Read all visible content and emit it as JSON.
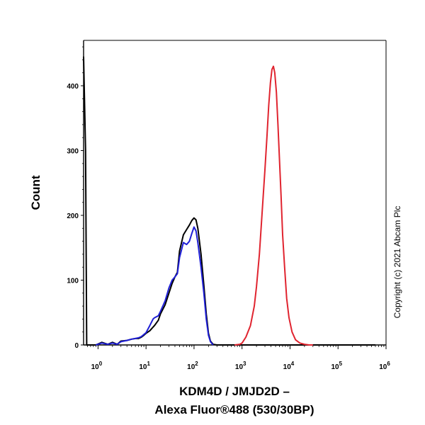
{
  "chart_data": {
    "type": "line",
    "title": "",
    "xlabel_line1": "KDM4D / JMJD2D –",
    "xlabel_line2": "Alexa Fluor®488 (530/30BP)",
    "ylabel": "Count",
    "x_scale": "log",
    "xlim": [
      0.5,
      1000000
    ],
    "ylim": [
      0,
      470
    ],
    "x_ticks": [
      {
        "base": "10",
        "exp": "0",
        "value": 1
      },
      {
        "base": "10",
        "exp": "1",
        "value": 10
      },
      {
        "base": "10",
        "exp": "2",
        "value": 100
      },
      {
        "base": "10",
        "exp": "3",
        "value": 1000
      },
      {
        "base": "10",
        "exp": "4",
        "value": 10000
      },
      {
        "base": "10",
        "exp": "5",
        "value": 100000
      },
      {
        "base": "10",
        "exp": "6",
        "value": 1000000
      }
    ],
    "y_ticks": [
      "0",
      "100",
      "200",
      "300",
      "400"
    ],
    "grid": false,
    "legend": "none",
    "annotation": "Copyright (c) 2021 Abcam Plc",
    "series": [
      {
        "color": "#000000",
        "points": [
          [
            0.5,
            445
          ],
          [
            0.55,
            300
          ],
          [
            0.58,
            0
          ],
          [
            0.9,
            0
          ],
          [
            1.2,
            4
          ],
          [
            1.6,
            1
          ],
          [
            2,
            4
          ],
          [
            2.5,
            1
          ],
          [
            3,
            6
          ],
          [
            4,
            7
          ],
          [
            5,
            9
          ],
          [
            6,
            10
          ],
          [
            7,
            10
          ],
          [
            8,
            12
          ],
          [
            9,
            15
          ],
          [
            10,
            18
          ],
          [
            12,
            22
          ],
          [
            15,
            30
          ],
          [
            18,
            38
          ],
          [
            20,
            48
          ],
          [
            25,
            62
          ],
          [
            30,
            80
          ],
          [
            35,
            95
          ],
          [
            40,
            105
          ],
          [
            45,
            112
          ],
          [
            50,
            145
          ],
          [
            60,
            170
          ],
          [
            70,
            178
          ],
          [
            80,
            185
          ],
          [
            90,
            192
          ],
          [
            100,
            196
          ],
          [
            110,
            193
          ],
          [
            120,
            180
          ],
          [
            140,
            140
          ],
          [
            160,
            92
          ],
          [
            180,
            48
          ],
          [
            200,
            18
          ],
          [
            220,
            6
          ],
          [
            250,
            1
          ],
          [
            300,
            0
          ],
          [
            600000,
            0
          ]
        ]
      },
      {
        "color": "#1f1fd6",
        "points": [
          [
            0.9,
            0
          ],
          [
            1.2,
            3
          ],
          [
            1.6,
            1
          ],
          [
            2,
            3
          ],
          [
            2.5,
            1
          ],
          [
            3,
            5
          ],
          [
            4,
            7
          ],
          [
            5,
            9
          ],
          [
            6,
            10
          ],
          [
            7,
            11
          ],
          [
            8,
            13
          ],
          [
            10,
            19
          ],
          [
            12,
            30
          ],
          [
            14,
            40
          ],
          [
            15,
            42
          ],
          [
            18,
            45
          ],
          [
            20,
            52
          ],
          [
            25,
            68
          ],
          [
            30,
            88
          ],
          [
            35,
            100
          ],
          [
            40,
            105
          ],
          [
            45,
            110
          ],
          [
            50,
            135
          ],
          [
            60,
            158
          ],
          [
            70,
            155
          ],
          [
            80,
            160
          ],
          [
            90,
            172
          ],
          [
            100,
            182
          ],
          [
            110,
            176
          ],
          [
            120,
            158
          ],
          [
            140,
            120
          ],
          [
            160,
            80
          ],
          [
            180,
            40
          ],
          [
            200,
            15
          ],
          [
            220,
            5
          ],
          [
            250,
            0
          ]
        ]
      },
      {
        "color": "#e0242f",
        "points": [
          [
            700,
            0
          ],
          [
            900,
            1
          ],
          [
            1000,
            3
          ],
          [
            1200,
            12
          ],
          [
            1500,
            30
          ],
          [
            1800,
            60
          ],
          [
            2000,
            90
          ],
          [
            2300,
            140
          ],
          [
            2600,
            200
          ],
          [
            3000,
            270
          ],
          [
            3300,
            320
          ],
          [
            3600,
            370
          ],
          [
            3900,
            405
          ],
          [
            4200,
            425
          ],
          [
            4500,
            430
          ],
          [
            4800,
            420
          ],
          [
            5200,
            390
          ],
          [
            5600,
            340
          ],
          [
            6000,
            290
          ],
          [
            6500,
            230
          ],
          [
            7000,
            170
          ],
          [
            7700,
            120
          ],
          [
            8500,
            72
          ],
          [
            9500,
            42
          ],
          [
            11000,
            20
          ],
          [
            13000,
            8
          ],
          [
            16000,
            3
          ],
          [
            20000,
            1
          ],
          [
            25000,
            0
          ],
          [
            30000,
            0
          ]
        ]
      }
    ]
  }
}
